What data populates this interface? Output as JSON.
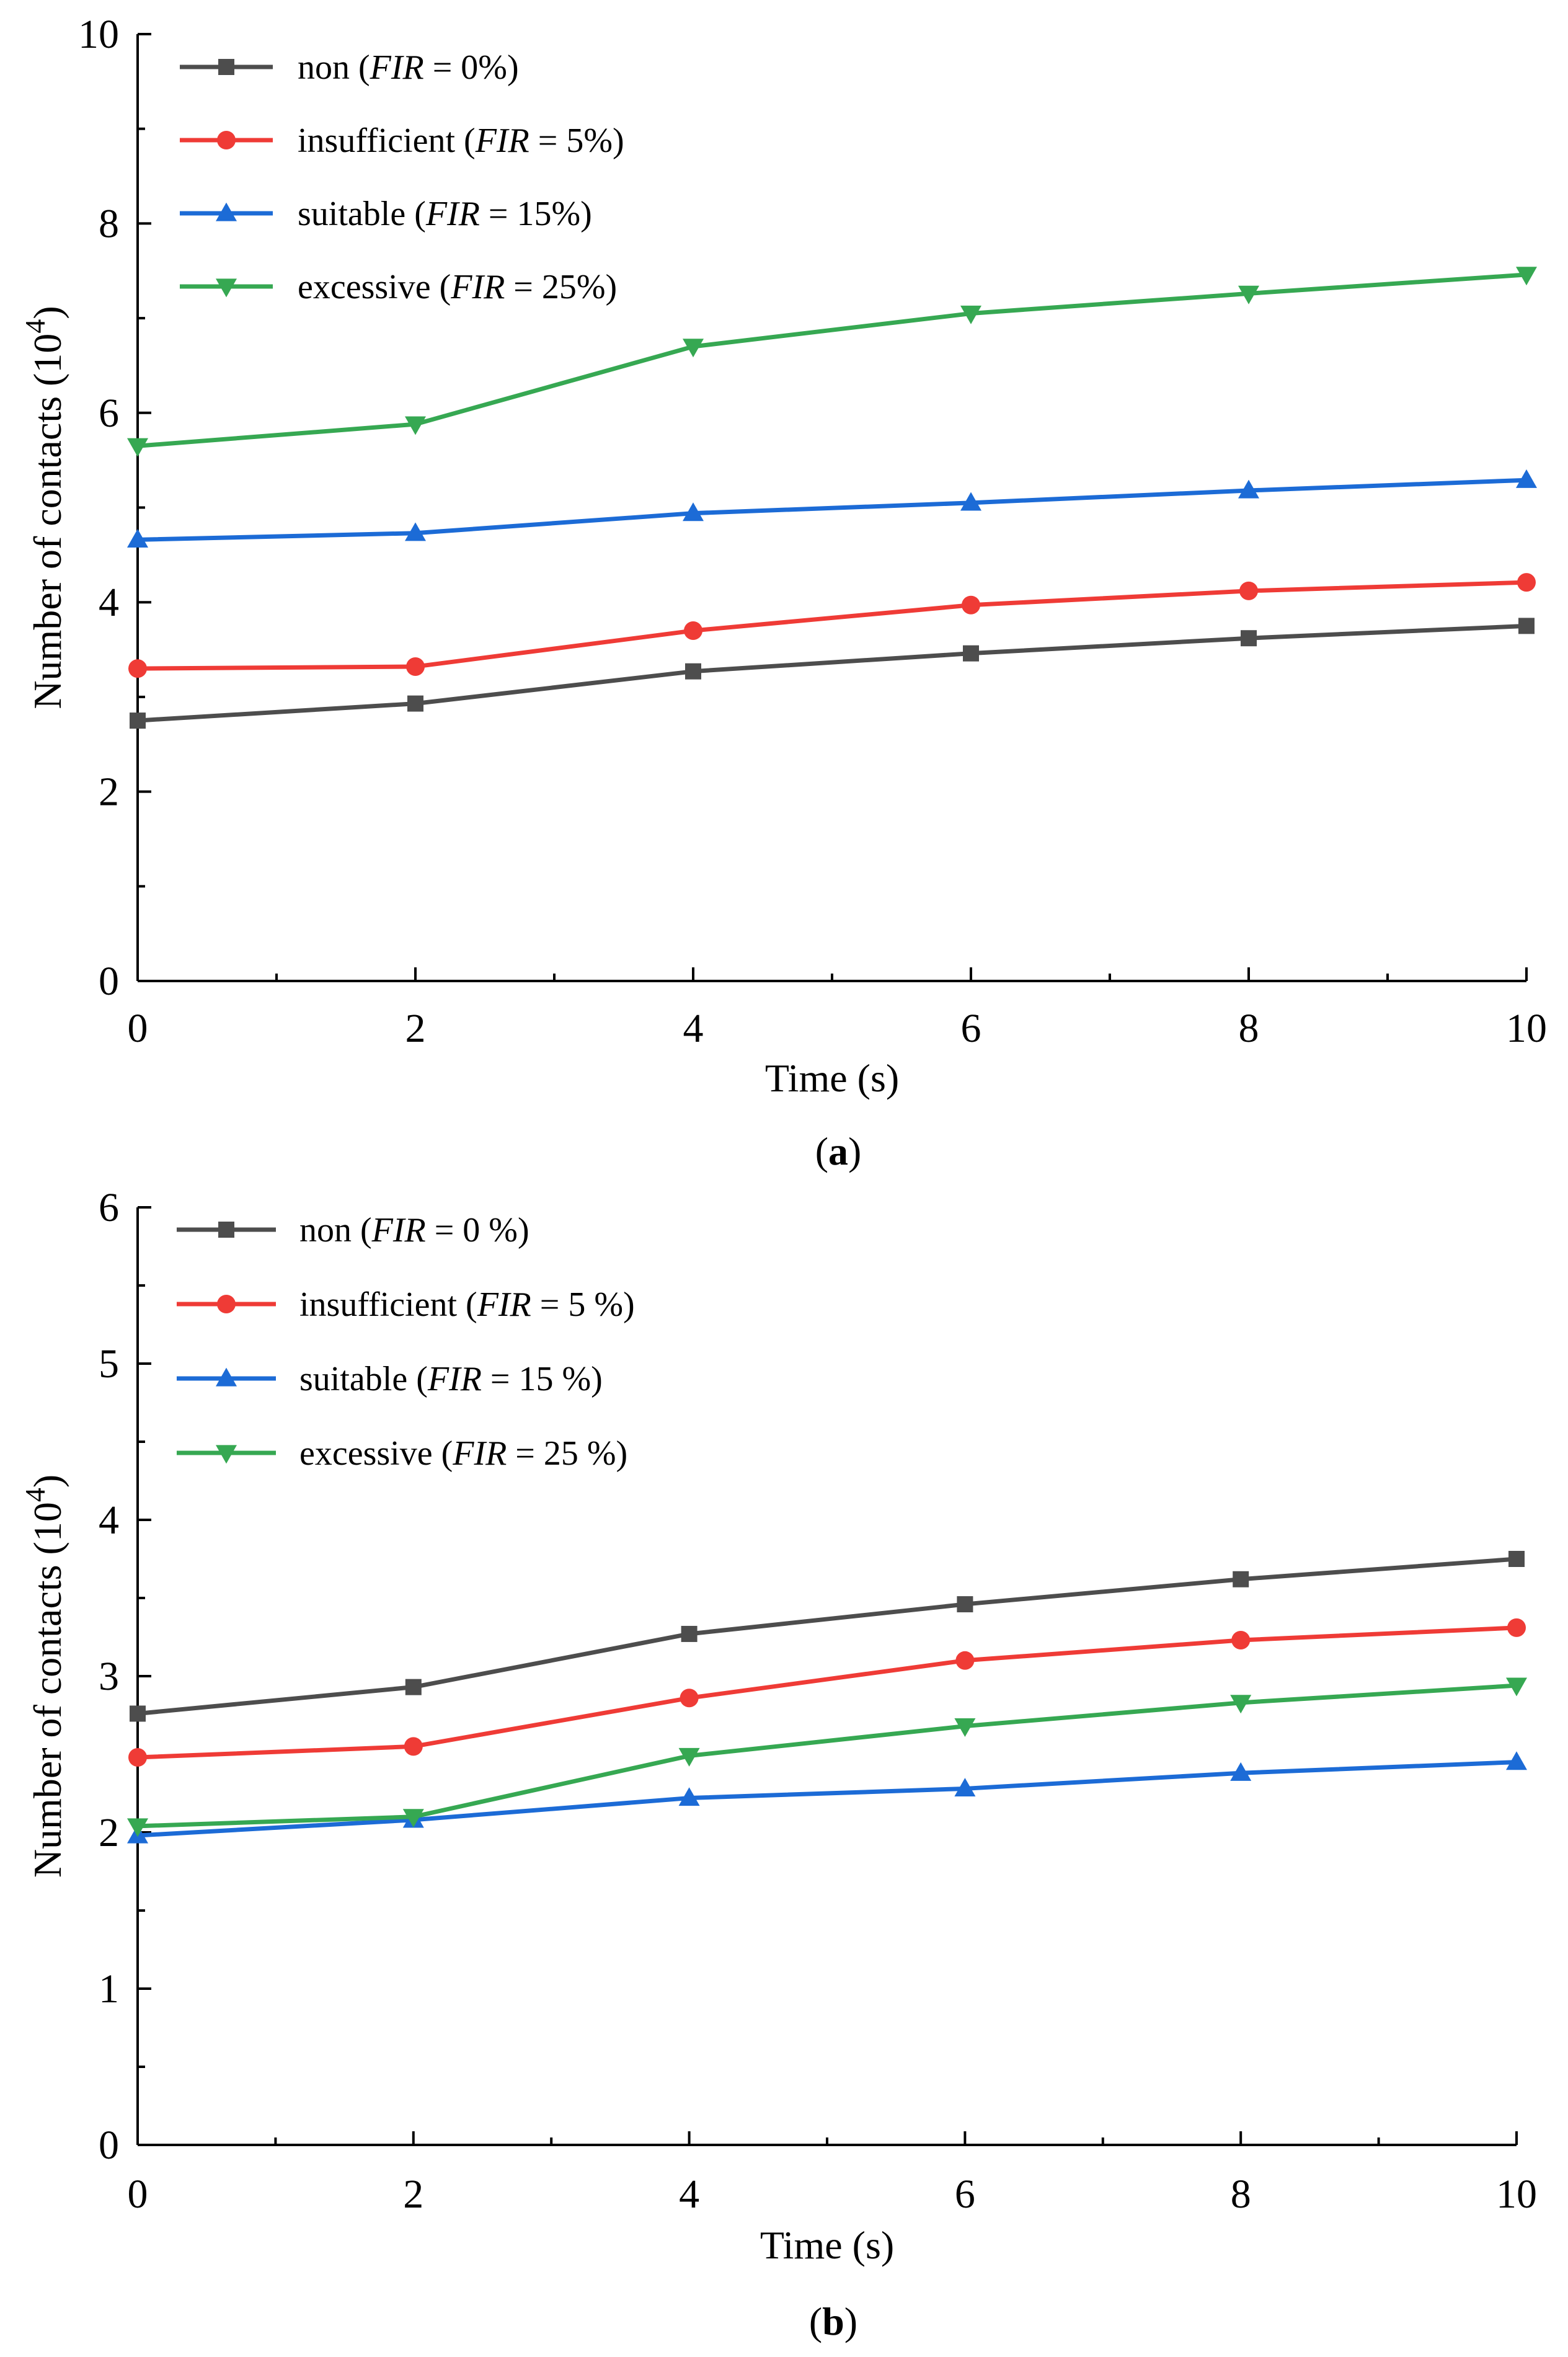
{
  "chart_data": [
    {
      "type": "line",
      "caption": "(a)",
      "caption_letter": "a",
      "xlabel": "Time (s)",
      "ylabel": "Number of contacts (10",
      "ylabel_exponent": "4",
      "ylabel_close": ")",
      "xlim": [
        0,
        10
      ],
      "ylim": [
        0,
        10
      ],
      "x_ticks": [
        0,
        2,
        4,
        6,
        8,
        10
      ],
      "y_ticks": [
        0,
        2,
        4,
        6,
        8,
        10
      ],
      "grid": false,
      "legend_position": "top-left",
      "x": [
        0,
        2,
        4,
        6,
        8,
        10
      ],
      "series": [
        {
          "label": "non",
          "fir_text": "FIR",
          "fir_value": " = 0%)",
          "color": "#4d4d4d",
          "marker": "square",
          "values": [
            2.75,
            2.93,
            3.27,
            3.46,
            3.62,
            3.75
          ]
        },
        {
          "label": "insufficient",
          "fir_text": "FIR",
          "fir_value": " = 5%)",
          "color": "#ef3b36",
          "marker": "circle",
          "values": [
            3.3,
            3.32,
            3.7,
            3.97,
            4.12,
            4.21
          ]
        },
        {
          "label": "suitable",
          "fir_text": "FIR",
          "fir_value": " = 15%)",
          "color": "#1c6bd6",
          "marker": "triangle-up",
          "values": [
            4.66,
            4.73,
            4.94,
            5.05,
            5.18,
            5.29
          ]
        },
        {
          "label": "excessive",
          "fir_text": "FIR",
          "fir_value": " = 25%)",
          "color": "#36a852",
          "marker": "triangle-down",
          "values": [
            5.65,
            5.88,
            6.7,
            7.05,
            7.26,
            7.46
          ]
        }
      ]
    },
    {
      "type": "line",
      "caption": "(b)",
      "caption_letter": "b",
      "xlabel": "Time (s)",
      "ylabel": "Number of  contacts (10",
      "ylabel_exponent": "4",
      "ylabel_close": ")",
      "xlim": [
        0,
        10
      ],
      "ylim": [
        0,
        6
      ],
      "x_ticks": [
        0,
        2,
        4,
        6,
        8,
        10
      ],
      "y_ticks": [
        0,
        1,
        2,
        3,
        4,
        5,
        6
      ],
      "grid": false,
      "legend_position": "top-left",
      "x": [
        0,
        2,
        4,
        6,
        8,
        10
      ],
      "series": [
        {
          "label": "non",
          "fir_text": "FIR",
          "fir_value": " = 0 %)",
          "color": "#4d4d4d",
          "marker": "square",
          "values": [
            2.76,
            2.93,
            3.27,
            3.46,
            3.62,
            3.75
          ]
        },
        {
          "label": "insufficient",
          "fir_text": "FIR",
          "fir_value": " = 5 %)",
          "color": "#ef3b36",
          "marker": "circle",
          "values": [
            2.48,
            2.55,
            2.86,
            3.1,
            3.23,
            3.31
          ]
        },
        {
          "label": "suitable",
          "fir_text": "FIR",
          "fir_value": " = 15 %)",
          "color": "#1c6bd6",
          "marker": "triangle-up",
          "values": [
            1.98,
            2.08,
            2.22,
            2.28,
            2.38,
            2.45
          ]
        },
        {
          "label": "excessive",
          "fir_text": "FIR",
          "fir_value": " = 25 %)",
          "color": "#36a852",
          "marker": "triangle-down",
          "values": [
            2.04,
            2.1,
            2.49,
            2.68,
            2.83,
            2.94
          ]
        }
      ]
    }
  ]
}
